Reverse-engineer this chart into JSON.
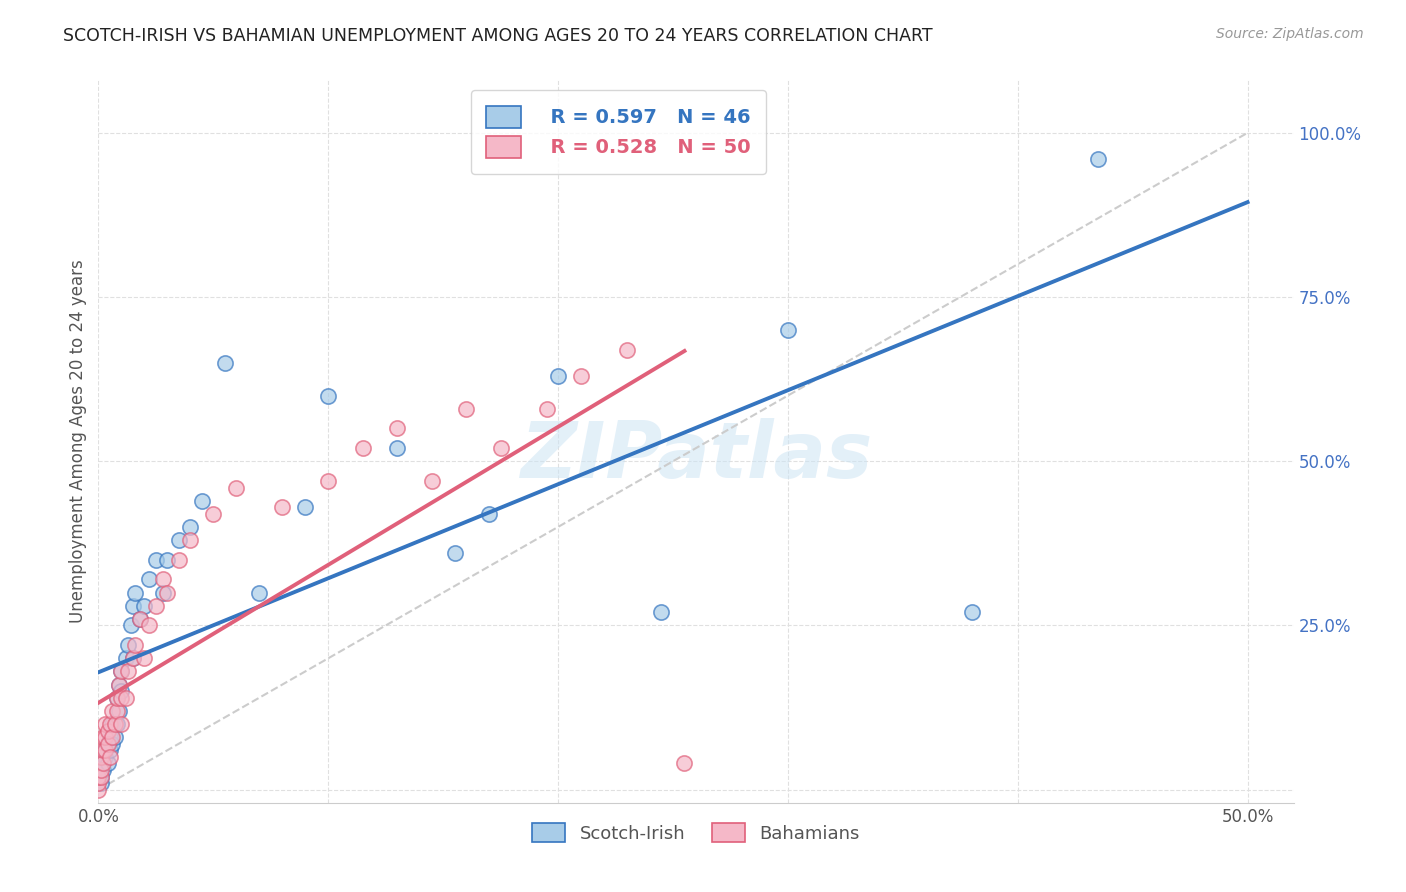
{
  "title": "SCOTCH-IRISH VS BAHAMIAN UNEMPLOYMENT AMONG AGES 20 TO 24 YEARS CORRELATION CHART",
  "source": "Source: ZipAtlas.com",
  "ylabel": "Unemployment Among Ages 20 to 24 years",
  "xlim": [
    0.0,
    0.52
  ],
  "ylim": [
    -0.02,
    1.08
  ],
  "xticks": [
    0.0,
    0.1,
    0.2,
    0.3,
    0.4,
    0.5
  ],
  "xticklabels": [
    "0.0%",
    "",
    "",
    "",
    "",
    "50.0%"
  ],
  "yticks": [
    0.0,
    0.25,
    0.5,
    0.75,
    1.0
  ],
  "yticklabels": [
    "",
    "25.0%",
    "50.0%",
    "75.0%",
    "100.0%"
  ],
  "legend_R_blue": "R = 0.597",
  "legend_N_blue": "N = 46",
  "legend_R_pink": "R = 0.528",
  "legend_N_pink": "N = 50",
  "blue_scatter_color": "#a8cce8",
  "pink_scatter_color": "#f5b8c8",
  "blue_line_color": "#3575c0",
  "pink_line_color": "#e0607a",
  "diagonal_color": "#cccccc",
  "watermark": "ZIPatlas",
  "si_x": [
    0.001,
    0.001,
    0.001,
    0.002,
    0.003,
    0.003,
    0.004,
    0.004,
    0.005,
    0.005,
    0.006,
    0.006,
    0.007,
    0.008,
    0.008,
    0.009,
    0.009,
    0.01,
    0.01,
    0.012,
    0.013,
    0.014,
    0.015,
    0.015,
    0.016,
    0.018,
    0.02,
    0.022,
    0.025,
    0.028,
    0.03,
    0.035,
    0.04,
    0.045,
    0.055,
    0.07,
    0.09,
    0.1,
    0.13,
    0.155,
    0.17,
    0.2,
    0.245,
    0.3,
    0.38,
    0.435
  ],
  "si_y": [
    0.01,
    0.02,
    0.04,
    0.03,
    0.05,
    0.06,
    0.04,
    0.07,
    0.06,
    0.08,
    0.07,
    0.1,
    0.08,
    0.1,
    0.14,
    0.12,
    0.16,
    0.15,
    0.18,
    0.2,
    0.22,
    0.25,
    0.2,
    0.28,
    0.3,
    0.26,
    0.28,
    0.32,
    0.35,
    0.3,
    0.35,
    0.38,
    0.4,
    0.44,
    0.65,
    0.3,
    0.43,
    0.6,
    0.52,
    0.36,
    0.42,
    0.63,
    0.27,
    0.7,
    0.27,
    0.96
  ],
  "bah_x": [
    0.0,
    0.0,
    0.0,
    0.001,
    0.001,
    0.001,
    0.002,
    0.002,
    0.002,
    0.003,
    0.003,
    0.003,
    0.004,
    0.004,
    0.005,
    0.005,
    0.006,
    0.006,
    0.007,
    0.008,
    0.008,
    0.009,
    0.01,
    0.01,
    0.01,
    0.012,
    0.013,
    0.015,
    0.016,
    0.018,
    0.02,
    0.022,
    0.025,
    0.028,
    0.03,
    0.035,
    0.04,
    0.05,
    0.06,
    0.08,
    0.1,
    0.115,
    0.13,
    0.145,
    0.16,
    0.175,
    0.195,
    0.21,
    0.23,
    0.255
  ],
  "bah_y": [
    0.0,
    0.01,
    0.02,
    0.02,
    0.03,
    0.05,
    0.04,
    0.06,
    0.08,
    0.06,
    0.08,
    0.1,
    0.07,
    0.09,
    0.05,
    0.1,
    0.08,
    0.12,
    0.1,
    0.12,
    0.14,
    0.16,
    0.1,
    0.14,
    0.18,
    0.14,
    0.18,
    0.2,
    0.22,
    0.26,
    0.2,
    0.25,
    0.28,
    0.32,
    0.3,
    0.35,
    0.38,
    0.42,
    0.46,
    0.43,
    0.47,
    0.52,
    0.55,
    0.47,
    0.58,
    0.52,
    0.58,
    0.63,
    0.67,
    0.04
  ]
}
